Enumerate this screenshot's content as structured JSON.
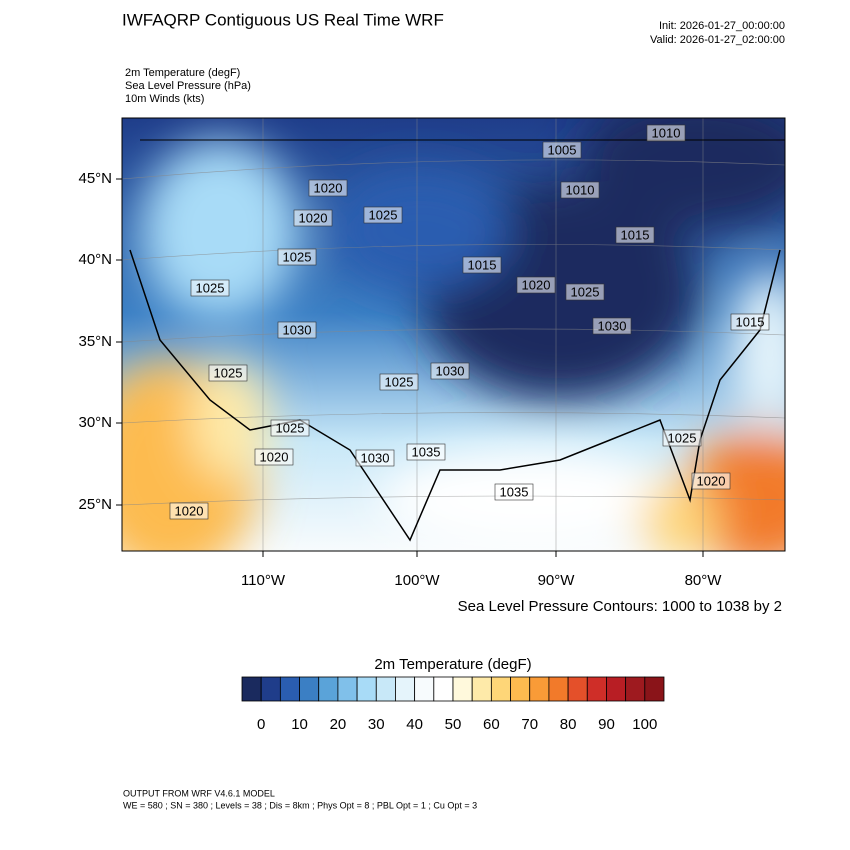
{
  "header": {
    "title": "IWFAQRP Contiguous US Real Time WRF",
    "init": "Init: 2026-01-27_00:00:00",
    "valid": "Valid: 2026-01-27_02:00:00"
  },
  "fields": [
    "2m Temperature   (degF)",
    "Sea Level Pressure   (hPa)",
    "10m Winds   (kts)"
  ],
  "map": {
    "lat_labels": [
      "45°N",
      "40°N",
      "35°N",
      "30°N",
      "25°N"
    ],
    "lon_labels": [
      "110°W",
      "100°W",
      "90°W",
      "80°W"
    ],
    "contour_labels": [
      "1010",
      "1005",
      "1020",
      "1010",
      "1020",
      "1025",
      "1015",
      "1025",
      "1015",
      "1025",
      "1020",
      "1025",
      "1030",
      "1030",
      "1015",
      "1025",
      "1025",
      "1030",
      "1025",
      "1020",
      "1030",
      "1035",
      "1025",
      "1035",
      "1020",
      "1020"
    ],
    "contour_note": "Sea Level Pressure Contours: 1000 to 1038 by 2"
  },
  "colorbar": {
    "title": "2m Temperature  (degF)",
    "colors": [
      "#1a2a5e",
      "#1f3d8a",
      "#2a5db0",
      "#3b7fc4",
      "#5aa3d9",
      "#80c0ea",
      "#a8dbf7",
      "#c8e8f8",
      "#e5f4fb",
      "#f7fbfd",
      "#ffffff",
      "#fff9dc",
      "#feeaa9",
      "#fed678",
      "#fdbb4f",
      "#f99b37",
      "#f27a2a",
      "#e4502a",
      "#cf2e28",
      "#b81e24",
      "#9e1a1f",
      "#8a1419"
    ],
    "ticks": [
      0,
      10,
      20,
      30,
      40,
      50,
      60,
      70,
      80,
      90,
      100
    ]
  },
  "footer": [
    "OUTPUT FROM WRF V4.6.1 MODEL",
    "WE = 580 ; SN = 380 ; Levels = 38 ; Dis = 8km ; Phys Opt = 8 ; PBL Opt = 1 ; Cu Opt = 3"
  ]
}
